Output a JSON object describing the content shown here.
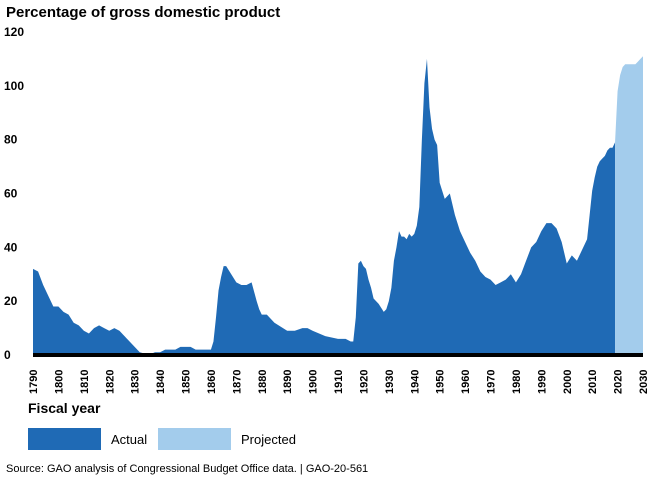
{
  "chart_data": {
    "type": "area",
    "title": "Percentage of gross domestic product",
    "xlabel": "Fiscal year",
    "ylabel": "Percentage of gross domestic product",
    "xlim": [
      1790,
      2030
    ],
    "ylim": [
      0,
      120
    ],
    "yticks": [
      0,
      20,
      40,
      60,
      80,
      100,
      120
    ],
    "xticks": [
      1790,
      1800,
      1810,
      1820,
      1830,
      1840,
      1850,
      1860,
      1870,
      1880,
      1890,
      1900,
      1910,
      1920,
      1930,
      1940,
      1950,
      1960,
      1970,
      1980,
      1990,
      2000,
      2010,
      2020,
      2030
    ],
    "ytick_labels": [
      "0",
      "20",
      "40",
      "60",
      "80",
      "100",
      "120"
    ],
    "xtick_labels": [
      "1790",
      "1800",
      "1810",
      "1820",
      "1830",
      "1840",
      "1850",
      "1860",
      "1870",
      "1880",
      "1890",
      "1900",
      "1910",
      "1920",
      "1930",
      "1940",
      "1950",
      "1960",
      "1970",
      "1980",
      "1990",
      "2000",
      "2010",
      "2020",
      "2030"
    ],
    "series": [
      {
        "name": "Actual",
        "color": "#1f6ab5",
        "x": [
          1790,
          1792,
          1794,
          1796,
          1798,
          1800,
          1802,
          1804,
          1806,
          1808,
          1810,
          1812,
          1814,
          1816,
          1818,
          1820,
          1822,
          1824,
          1826,
          1828,
          1830,
          1832,
          1834,
          1836,
          1838,
          1840,
          1842,
          1844,
          1846,
          1848,
          1850,
          1852,
          1854,
          1856,
          1858,
          1860,
          1861,
          1862,
          1863,
          1864,
          1865,
          1866,
          1868,
          1870,
          1872,
          1874,
          1876,
          1878,
          1879,
          1880,
          1882,
          1885,
          1890,
          1893,
          1896,
          1898,
          1900,
          1905,
          1910,
          1913,
          1915,
          1916,
          1917,
          1918,
          1919,
          1920,
          1921,
          1922,
          1923,
          1924,
          1926,
          1928,
          1929,
          1930,
          1931,
          1932,
          1933,
          1934,
          1935,
          1936,
          1937,
          1938,
          1939,
          1940,
          1941,
          1942,
          1943,
          1944,
          1945,
          1946,
          1947,
          1948,
          1949,
          1950,
          1952,
          1954,
          1956,
          1958,
          1960,
          1962,
          1964,
          1966,
          1968,
          1970,
          1972,
          1974,
          1976,
          1978,
          1980,
          1982,
          1984,
          1986,
          1988,
          1990,
          1992,
          1994,
          1996,
          1998,
          2000,
          2002,
          2004,
          2006,
          2008,
          2009,
          2010,
          2011,
          2012,
          2013,
          2014,
          2015,
          2016,
          2017,
          2018,
          2019
        ],
        "values": [
          32,
          31,
          26,
          22,
          18,
          18,
          16,
          15,
          12,
          11,
          9,
          8,
          10,
          11,
          10,
          9,
          10,
          9,
          7,
          5,
          3,
          1,
          0.5,
          0.3,
          1,
          1,
          2,
          2,
          2,
          3,
          3,
          3,
          2,
          2,
          2,
          2,
          5,
          14,
          24,
          29,
          33,
          33,
          30,
          27,
          26,
          26,
          27,
          20,
          17,
          15,
          15,
          12,
          9,
          9,
          10,
          10,
          9,
          7,
          6,
          6,
          5,
          5,
          14,
          34,
          35,
          33,
          32,
          28,
          25,
          21,
          19,
          16,
          17,
          20,
          25,
          35,
          40,
          46,
          44,
          44,
          43,
          45,
          44,
          45,
          48,
          55,
          80,
          101,
          110,
          92,
          84,
          80,
          78,
          64,
          58,
          60,
          52,
          46,
          42,
          38,
          35,
          31,
          29,
          28,
          26,
          27,
          28,
          30,
          27,
          30,
          35,
          40,
          42,
          46,
          49,
          49,
          47,
          42,
          34,
          37,
          35,
          39,
          43,
          52,
          61,
          66,
          70,
          72,
          73,
          74,
          76,
          77,
          77,
          79
        ]
      },
      {
        "name": "Projected",
        "color": "#a3ccec",
        "x": [
          2019,
          2020,
          2021,
          2022,
          2023,
          2024,
          2025,
          2026,
          2027,
          2028,
          2029,
          2030
        ],
        "values": [
          79,
          98,
          104,
          107,
          108,
          108,
          108,
          108,
          108,
          109,
          110,
          111
        ]
      }
    ],
    "legend": [
      "Actual",
      "Projected"
    ],
    "legend_placement": "bottom-left",
    "grid": false
  },
  "legend_title": "Fiscal year",
  "legend_items": [
    {
      "label": "Actual",
      "color": "#1f6ab5"
    },
    {
      "label": "Projected",
      "color": "#a3ccec"
    }
  ],
  "source": "Source: GAO analysis of Congressional Budget Office data.  |  GAO-20-561"
}
